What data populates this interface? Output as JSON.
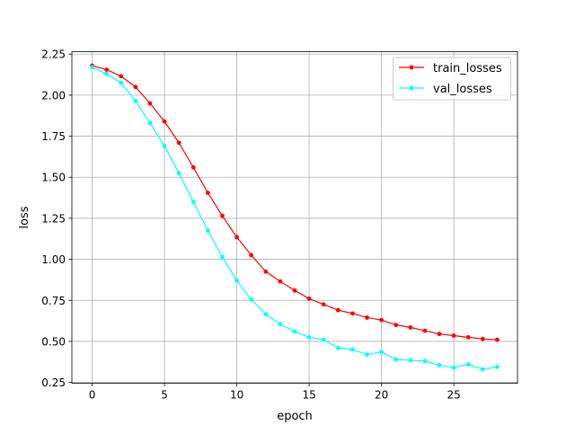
{
  "chart_data": {
    "type": "line",
    "title": "",
    "xlabel": "epoch",
    "ylabel": "loss",
    "xlim": [
      -1.4,
      29.4
    ],
    "ylim": [
      0.245,
      2.265
    ],
    "xticks": [
      0,
      5,
      10,
      15,
      20,
      25
    ],
    "yticks": [
      0.25,
      0.5,
      0.75,
      1.0,
      1.25,
      1.5,
      1.75,
      2.0,
      2.25
    ],
    "ytick_labels": [
      "0.25",
      "0.50",
      "0.75",
      "1.00",
      "1.25",
      "1.50",
      "1.75",
      "2.00",
      "2.25"
    ],
    "grid": true,
    "legend_position": "top-right",
    "x": [
      0,
      1,
      2,
      3,
      4,
      5,
      6,
      7,
      8,
      9,
      10,
      11,
      12,
      13,
      14,
      15,
      16,
      17,
      18,
      19,
      20,
      21,
      22,
      23,
      24,
      25,
      26,
      27,
      28
    ],
    "series": [
      {
        "name": "train_losses",
        "color": "#ff0000",
        "values": [
          2.18,
          2.155,
          2.115,
          2.05,
          1.95,
          1.84,
          1.71,
          1.56,
          1.405,
          1.265,
          1.135,
          1.025,
          0.925,
          0.865,
          0.81,
          0.76,
          0.725,
          0.69,
          0.67,
          0.645,
          0.63,
          0.6,
          0.585,
          0.565,
          0.545,
          0.535,
          0.525,
          0.515,
          0.51
        ]
      },
      {
        "name": "val_losses",
        "color": "#00ffff",
        "values": [
          2.17,
          2.13,
          2.075,
          1.965,
          1.83,
          1.69,
          1.525,
          1.35,
          1.175,
          1.015,
          0.87,
          0.755,
          0.665,
          0.605,
          0.56,
          0.525,
          0.51,
          0.46,
          0.45,
          0.42,
          0.435,
          0.39,
          0.385,
          0.38,
          0.355,
          0.34,
          0.36,
          0.33,
          0.345
        ]
      }
    ]
  }
}
